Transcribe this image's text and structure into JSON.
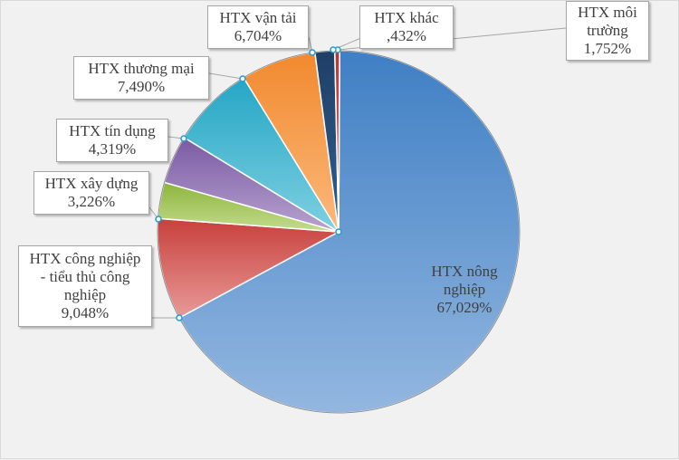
{
  "chart_data": {
    "type": "pie",
    "title": "",
    "slices": [
      {
        "name": "HTX nông nghiệp",
        "value": 67.029,
        "label_pct": "67,029%",
        "color_light": "#93b7e0",
        "color_dark": "#3f7fc4"
      },
      {
        "name": "HTX công nghiệp - tiểu thủ công nghiệp",
        "value": 9.048,
        "label_pct": "9,048%",
        "color_light": "#e89a98",
        "color_dark": "#c8403c"
      },
      {
        "name": "HTX xây dựng",
        "value": 3.226,
        "label_pct": "3,226%",
        "color_light": "#c3dc8e",
        "color_dark": "#8db53c"
      },
      {
        "name": "HTX tín dụng",
        "value": 4.319,
        "label_pct": "4,319%",
        "color_light": "#b7a3cf",
        "color_dark": "#7a5aa3"
      },
      {
        "name": "HTX thương mại",
        "value": 7.49,
        "label_pct": "7,490%",
        "color_light": "#7fd0e2",
        "color_dark": "#24a6c4"
      },
      {
        "name": "HTX vận tải",
        "value": 6.704,
        "label_pct": "6,704%",
        "color_light": "#fbb97c",
        "color_dark": "#f1892e"
      },
      {
        "name": "HTX môi trường",
        "value": 1.752,
        "label_pct": "1,752%",
        "color_light": "#2f5f92",
        "color_dark": "#1f3f66"
      },
      {
        "name": "HTX khác",
        "value": 0.432,
        "label_pct": ",432%",
        "color_light": "#e07470",
        "color_dark": "#b23a36"
      }
    ],
    "labels": [
      {
        "text": "HTX nông\nnghiệp\n67,029%"
      },
      {
        "text": "HTX công nghiệp\n- tiểu thủ công\nnghiệp\n9,048%"
      },
      {
        "text": "HTX xây dựng\n3,226%"
      },
      {
        "text": "HTX tín dụng\n4,319%"
      },
      {
        "text": "HTX thương mại\n7,490%"
      },
      {
        "text": "HTX vận tải\n6,704%"
      },
      {
        "text": "HTX môi\ntrường\n1,752%"
      },
      {
        "text": "HTX khác\n,432%"
      }
    ],
    "legend": "none"
  }
}
